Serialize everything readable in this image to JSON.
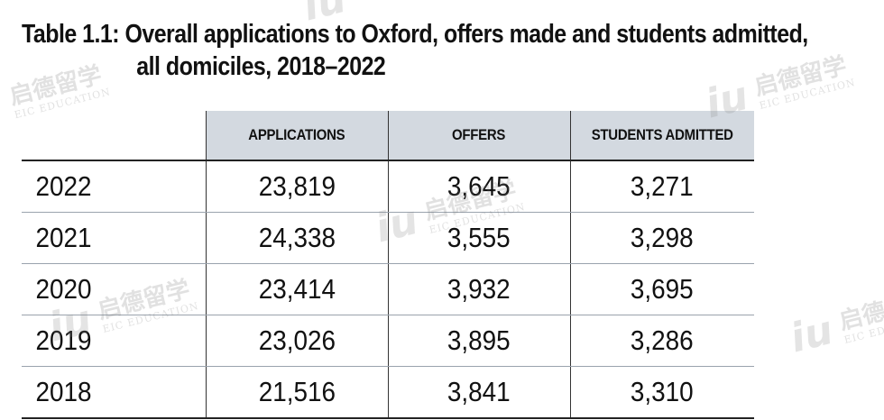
{
  "title": {
    "label": "Table 1.1:",
    "line1": "Overall applications to Oxford, offers made and students admitted,",
    "line2": "all domiciles, 2018–2022"
  },
  "table": {
    "headers": [
      "",
      "APPLICATIONS",
      "OFFERS",
      "STUDENTS ADMITTED"
    ],
    "rows": [
      {
        "year": "2022",
        "applications": "23,819",
        "offers": "3,645",
        "admitted": "3,271"
      },
      {
        "year": "2021",
        "applications": "24,338",
        "offers": "3,555",
        "admitted": "3,298"
      },
      {
        "year": "2020",
        "applications": "23,414",
        "offers": "3,932",
        "admitted": "3,695"
      },
      {
        "year": "2019",
        "applications": "23,026",
        "offers": "3,895",
        "admitted": "3,286"
      },
      {
        "year": "2018",
        "applications": "21,516",
        "offers": "3,841",
        "admitted": "3,310"
      }
    ]
  },
  "watermark": {
    "cn": "启德留学",
    "en": "EIC EDUCATION",
    "mark": "iu"
  },
  "colors": {
    "header_bg": "#d3d9e0",
    "text": "#111111",
    "rule": "#222222"
  }
}
